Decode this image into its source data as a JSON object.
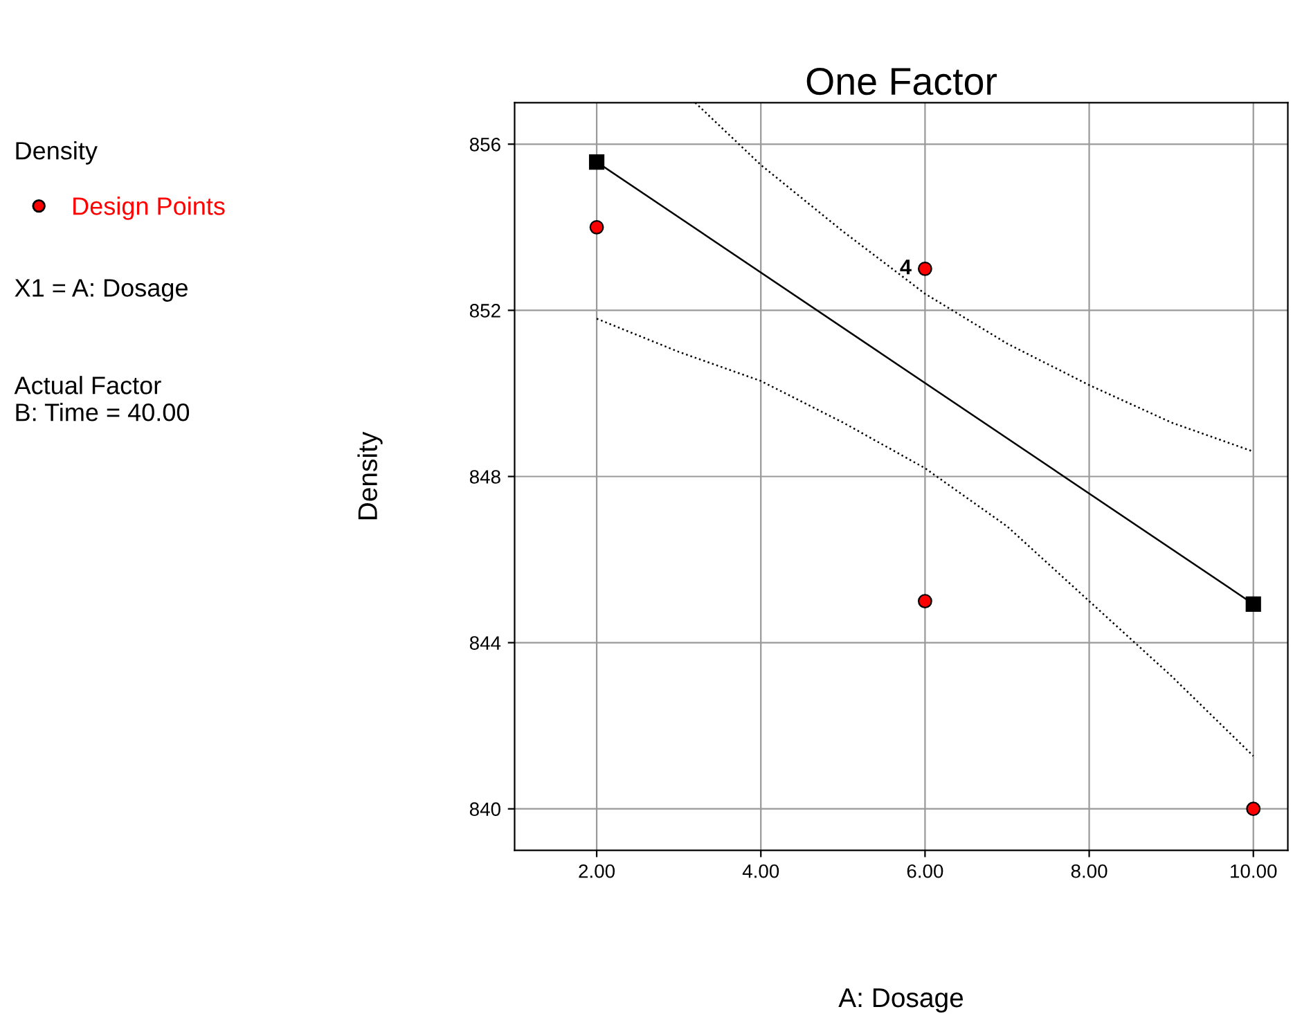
{
  "chart_data": {
    "type": "scatter",
    "title": "One Factor",
    "xlabel": "A: Dosage",
    "ylabel": "Density",
    "xlim": [
      1.0,
      10.42
    ],
    "ylim": [
      839,
      857
    ],
    "xticks": [
      {
        "value": 2,
        "label": "2.00"
      },
      {
        "value": 4,
        "label": "4.00"
      },
      {
        "value": 6,
        "label": "6.00"
      },
      {
        "value": 8,
        "label": "8.00"
      },
      {
        "value": 10,
        "label": "10.00"
      }
    ],
    "yticks": [
      840,
      844,
      848,
      852,
      856
    ],
    "grid": true,
    "legend": "left",
    "annotations": [
      "Density",
      {
        "text": "4",
        "x": 6,
        "y": 853
      },
      "X1 = A: Dosage",
      "Actual Factor\nB: Time = 40.00"
    ],
    "series": [
      {
        "name": "Design Points",
        "color": "#ff0000",
        "marker": "circle",
        "x": [
          2,
          6,
          6,
          10
        ],
        "values": [
          854,
          853,
          845,
          840
        ]
      },
      {
        "type": "line",
        "color": "#000000",
        "marker": "square",
        "line_style": "solid",
        "x": [
          2,
          10
        ],
        "values": [
          855.57,
          844.93
        ]
      },
      {
        "type": "line",
        "color": "#000000",
        "marker": "none",
        "line_style": "dotted",
        "x": [
          3.2,
          4,
          5,
          6,
          7,
          8,
          9,
          10
        ],
        "values": [
          857,
          855.5,
          853.9,
          852.4,
          851.2,
          850.2,
          849.3,
          848.6
        ]
      },
      {
        "type": "line",
        "color": "#000000",
        "marker": "none",
        "line_style": "dotted",
        "x": [
          2,
          3,
          4,
          5,
          6,
          7,
          8,
          9,
          10
        ],
        "values": [
          851.8,
          851.0,
          850.3,
          849.3,
          848.2,
          846.8,
          845.0,
          843.2,
          841.27
        ]
      }
    ]
  }
}
